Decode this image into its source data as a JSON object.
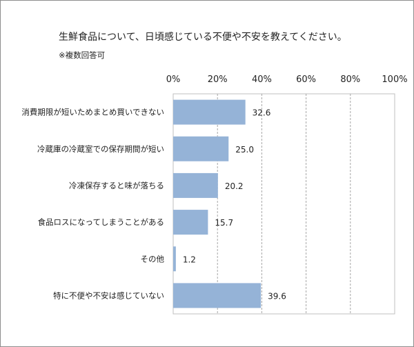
{
  "chart_data": {
    "type": "bar",
    "orientation": "horizontal",
    "title": "生鮮食品について、日頃感じている不便や不安を教えてください。",
    "subtitle": "※複数回答可",
    "categories": [
      "消費期限が短いためまとめ買いできない",
      "冷蔵庫の冷蔵室での保存期間が短い",
      "冷凍保存すると味が落ちる",
      "食品ロスになってしまうことがある",
      "その他",
      "特に不便や不安は感じていない"
    ],
    "values": [
      32.6,
      25.0,
      20.2,
      15.7,
      1.2,
      39.6
    ],
    "value_labels": [
      "32.6",
      "25.0",
      "20.2",
      "15.7",
      "1.2",
      "39.6"
    ],
    "xlim": [
      0,
      100
    ],
    "xticks": [
      "0%",
      "20%",
      "40%",
      "60%",
      "80%",
      "100%"
    ],
    "xtick_values": [
      0,
      20,
      40,
      60,
      80,
      100
    ],
    "xaxis_position": "top",
    "grid": true,
    "bar_color": "#95b3d7",
    "xlabel": "",
    "ylabel": ""
  }
}
